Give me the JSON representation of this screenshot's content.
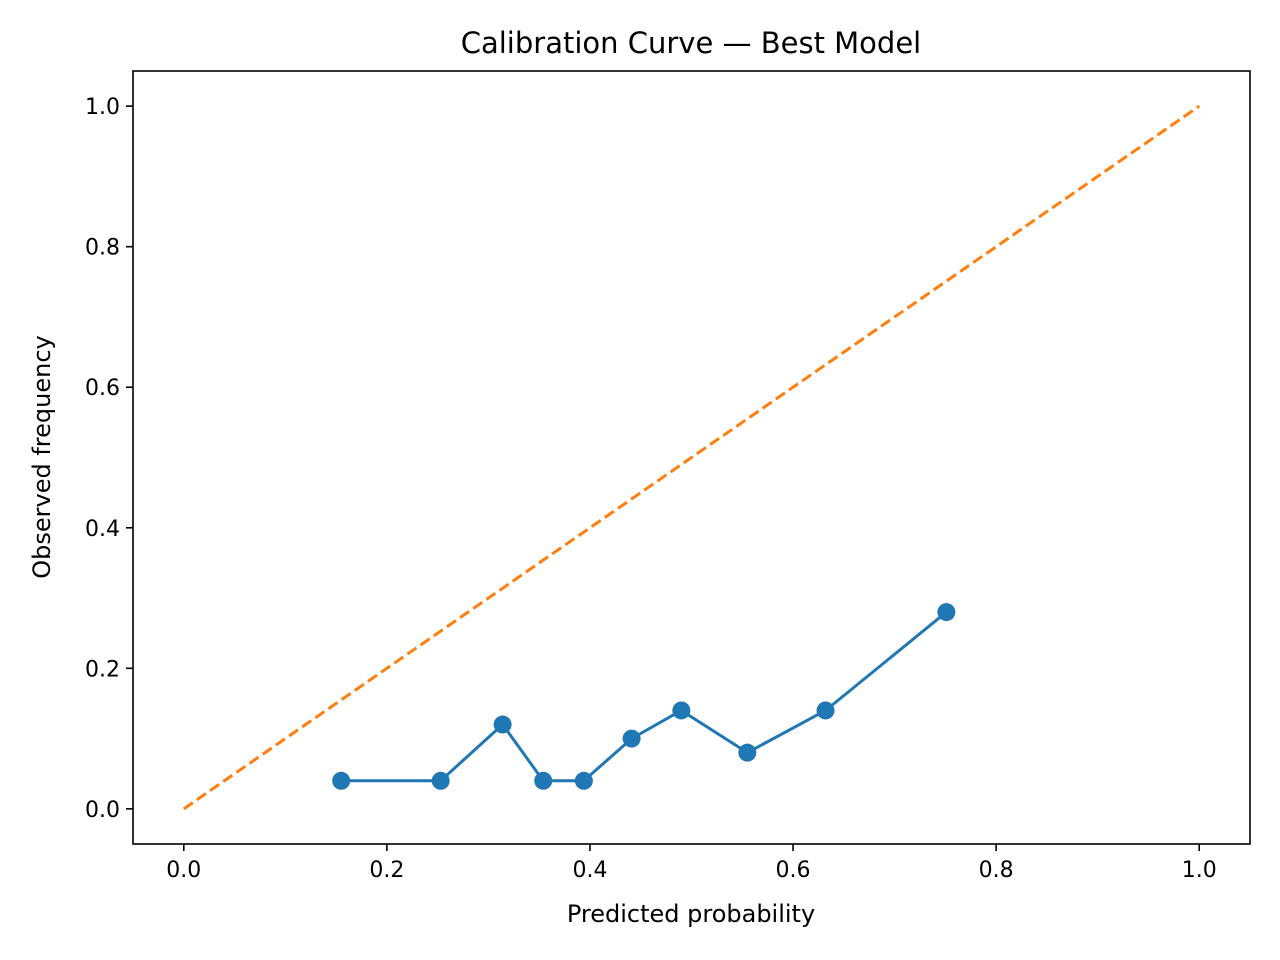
{
  "chart_data": {
    "type": "line",
    "title": "Calibration Curve — Best Model",
    "xlabel": "Predicted probability",
    "ylabel": "Observed frequency",
    "xlim": [
      -0.05,
      1.05
    ],
    "ylim": [
      -0.05,
      1.05
    ],
    "x_ticks": [
      "0.0",
      "0.2",
      "0.4",
      "0.6",
      "0.8",
      "1.0"
    ],
    "y_ticks": [
      "0.0",
      "0.2",
      "0.4",
      "0.6",
      "0.8",
      "1.0"
    ],
    "grid": false,
    "legend": "none",
    "series": [
      {
        "style": "solid line with circle markers",
        "color": "#1f77b4",
        "x": [
          0.155,
          0.253,
          0.314,
          0.354,
          0.394,
          0.441,
          0.49,
          0.555,
          0.632,
          0.751
        ],
        "y": [
          0.04,
          0.04,
          0.12,
          0.04,
          0.04,
          0.1,
          0.14,
          0.08,
          0.14,
          0.28
        ]
      },
      {
        "style": "dashed line",
        "color": "#ff7f0e",
        "x": [
          0.0,
          1.0
        ],
        "y": [
          0.0,
          1.0
        ]
      }
    ]
  }
}
